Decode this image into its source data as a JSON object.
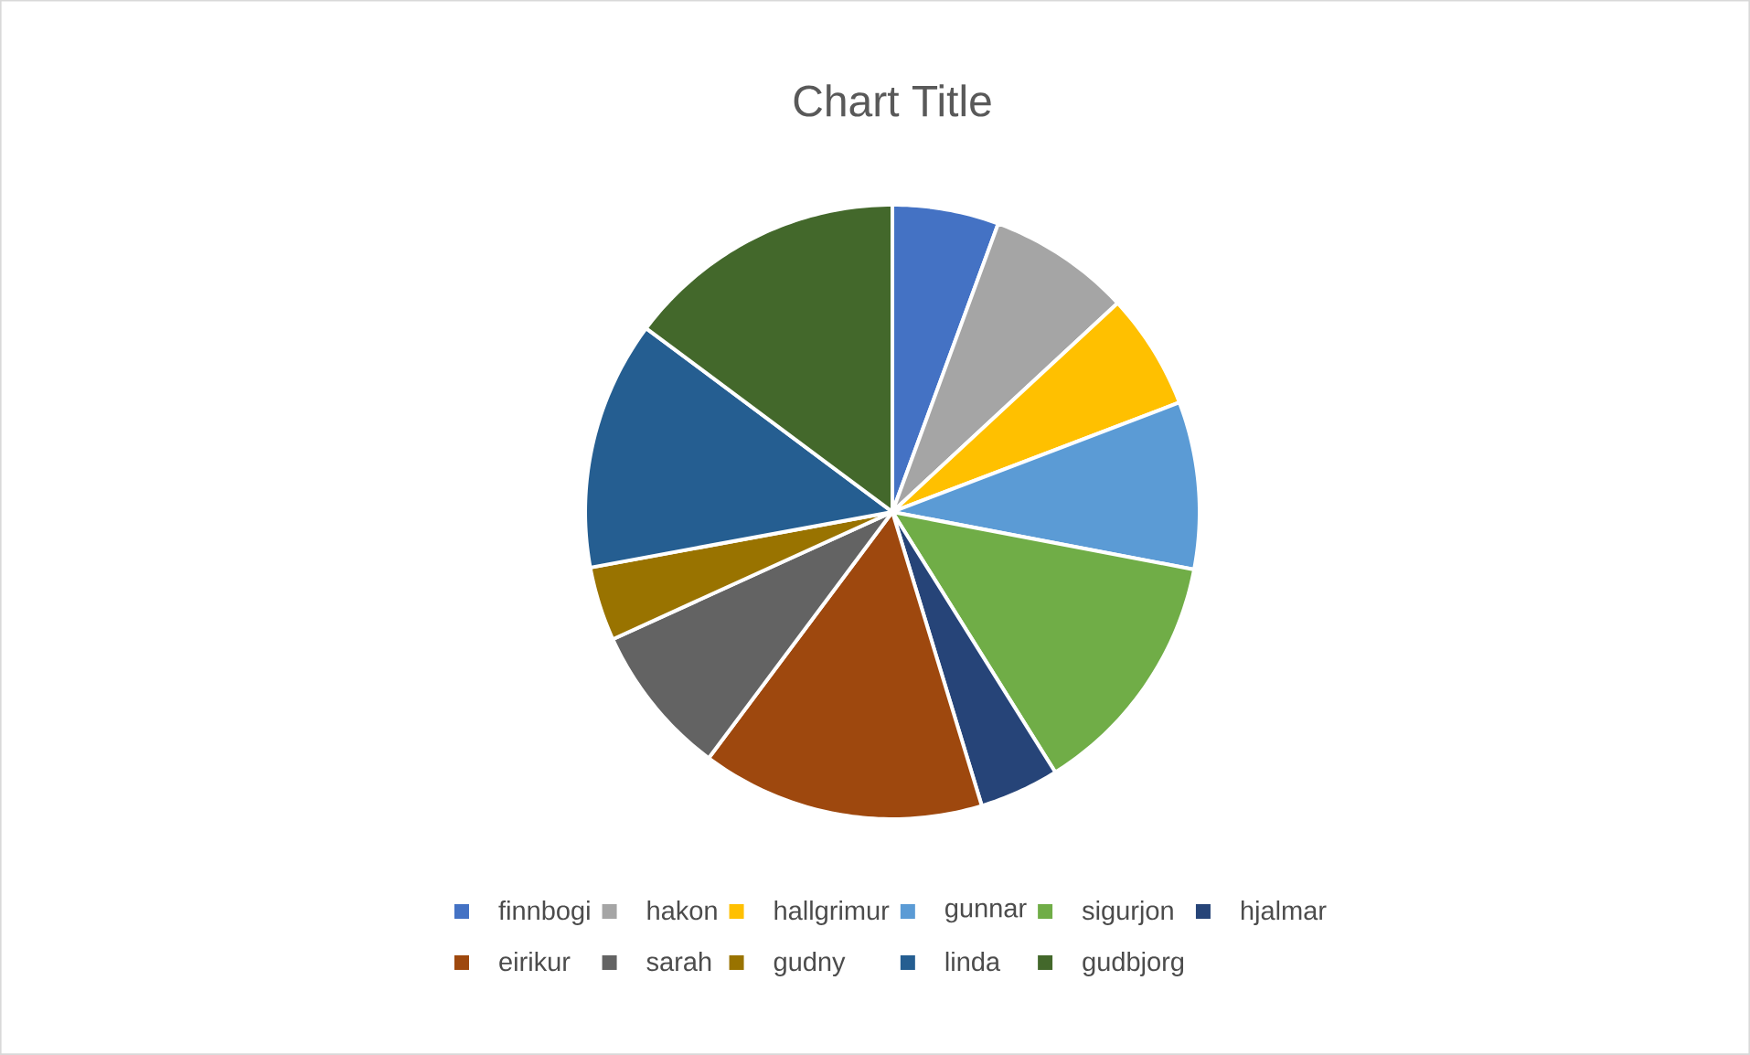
{
  "chart_data": {
    "type": "pie",
    "title": "Chart Title",
    "categories": [
      "finnbogi",
      "hakon",
      "hallgrimur",
      "gunnar",
      "sigurjon",
      "hjalmar",
      "eirikur",
      "sarah",
      "gudny",
      "linda",
      "gudbjorg"
    ],
    "values": [
      5.6,
      7.5,
      6.1,
      8.8,
      13.1,
      4.2,
      14.9,
      8.0,
      3.9,
      13.1,
      14.8
    ],
    "colors": [
      "#4472c4",
      "#a5a5a5",
      "#ffc000",
      "#5b9bd5",
      "#70ad47",
      "#264478",
      "#9e480e",
      "#636363",
      "#997300",
      "#255e91",
      "#43682b"
    ],
    "legend": "bottom"
  }
}
